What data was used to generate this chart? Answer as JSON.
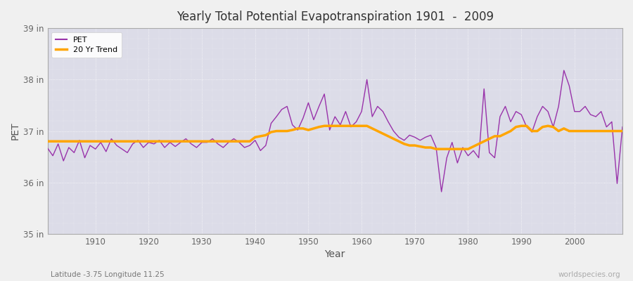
{
  "title": "Yearly Total Potential Evapotranspiration 1901  -  2009",
  "xlabel": "Year",
  "ylabel": "PET",
  "subtitle": "Latitude -3.75 Longitude 11.25",
  "watermark": "worldspecies.org",
  "pet_color": "#9933AA",
  "trend_color": "#FFA500",
  "bg_color": "#f0f0f0",
  "plot_bg_color": "#dcdce8",
  "ylim": [
    35,
    39
  ],
  "yticks": [
    35,
    36,
    37,
    38,
    39
  ],
  "ytick_labels": [
    "35 in",
    "36 in",
    "37 in",
    "38 in",
    "39 in"
  ],
  "xticks": [
    1910,
    1920,
    1930,
    1940,
    1950,
    1960,
    1970,
    1980,
    1990,
    2000
  ],
  "years": [
    1901,
    1902,
    1903,
    1904,
    1905,
    1906,
    1907,
    1908,
    1909,
    1910,
    1911,
    1912,
    1913,
    1914,
    1915,
    1916,
    1917,
    1918,
    1919,
    1920,
    1921,
    1922,
    1923,
    1924,
    1925,
    1926,
    1927,
    1928,
    1929,
    1930,
    1931,
    1932,
    1933,
    1934,
    1935,
    1936,
    1937,
    1938,
    1939,
    1940,
    1941,
    1942,
    1943,
    1944,
    1945,
    1946,
    1947,
    1948,
    1949,
    1950,
    1951,
    1952,
    1953,
    1954,
    1955,
    1956,
    1957,
    1958,
    1959,
    1960,
    1961,
    1962,
    1963,
    1964,
    1965,
    1966,
    1967,
    1968,
    1969,
    1970,
    1971,
    1972,
    1973,
    1974,
    1975,
    1976,
    1977,
    1978,
    1979,
    1980,
    1981,
    1982,
    1983,
    1984,
    1985,
    1986,
    1987,
    1988,
    1989,
    1990,
    1991,
    1992,
    1993,
    1994,
    1995,
    1996,
    1997,
    1998,
    1999,
    2000,
    2001,
    2002,
    2003,
    2004,
    2005,
    2006,
    2007,
    2008,
    2009
  ],
  "pet_values": [
    36.67,
    36.52,
    36.75,
    36.42,
    36.68,
    36.58,
    36.82,
    36.48,
    36.72,
    36.65,
    36.78,
    36.6,
    36.85,
    36.72,
    36.65,
    36.58,
    36.75,
    36.82,
    36.68,
    36.78,
    36.75,
    36.82,
    36.68,
    36.78,
    36.7,
    36.78,
    36.85,
    36.75,
    36.68,
    36.78,
    36.78,
    36.85,
    36.75,
    36.68,
    36.78,
    36.85,
    36.78,
    36.68,
    36.72,
    36.82,
    36.62,
    36.72,
    37.15,
    37.28,
    37.42,
    37.48,
    37.12,
    37.02,
    37.25,
    37.55,
    37.22,
    37.48,
    37.72,
    37.02,
    37.28,
    37.12,
    37.38,
    37.08,
    37.18,
    37.38,
    38.0,
    37.28,
    37.48,
    37.38,
    37.18,
    37.0,
    36.88,
    36.82,
    36.92,
    36.88,
    36.82,
    36.88,
    36.92,
    36.68,
    35.82,
    36.48,
    36.78,
    36.38,
    36.68,
    36.52,
    36.62,
    36.48,
    37.82,
    36.58,
    36.48,
    37.28,
    37.48,
    37.18,
    37.38,
    37.32,
    37.08,
    36.98,
    37.28,
    37.48,
    37.38,
    37.08,
    37.48,
    38.18,
    37.88,
    37.38,
    37.38,
    37.48,
    37.32,
    37.28,
    37.38,
    37.08,
    37.18,
    35.98,
    37.08
  ],
  "trend_values": [
    36.8,
    36.8,
    36.8,
    36.8,
    36.8,
    36.8,
    36.8,
    36.8,
    36.8,
    36.8,
    36.8,
    36.8,
    36.8,
    36.8,
    36.8,
    36.8,
    36.8,
    36.8,
    36.8,
    36.8,
    36.8,
    36.8,
    36.8,
    36.8,
    36.8,
    36.8,
    36.8,
    36.8,
    36.8,
    36.8,
    36.8,
    36.8,
    36.8,
    36.8,
    36.8,
    36.8,
    36.8,
    36.8,
    36.8,
    36.88,
    36.9,
    36.92,
    36.98,
    37.0,
    37.0,
    37.0,
    37.02,
    37.05,
    37.05,
    37.02,
    37.05,
    37.08,
    37.1,
    37.1,
    37.1,
    37.1,
    37.1,
    37.1,
    37.1,
    37.1,
    37.1,
    37.05,
    37.0,
    36.95,
    36.9,
    36.85,
    36.8,
    36.75,
    36.72,
    36.72,
    36.7,
    36.68,
    36.68,
    36.65,
    36.65,
    36.65,
    36.65,
    36.65,
    36.65,
    36.65,
    36.7,
    36.75,
    36.8,
    36.85,
    36.9,
    36.9,
    36.95,
    37.0,
    37.08,
    37.1,
    37.1,
    37.0,
    37.0,
    37.08,
    37.1,
    37.08,
    37.0,
    37.05,
    37.0,
    37.0,
    37.0,
    37.0,
    37.0,
    37.0,
    37.0,
    37.0,
    37.0,
    37.0,
    37.0
  ]
}
